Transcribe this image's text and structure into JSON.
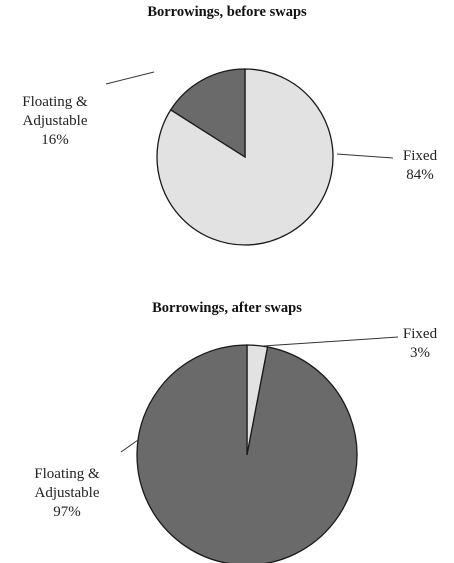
{
  "chart_data": [
    {
      "type": "pie",
      "title": "Borrowings, before swaps",
      "categories": [
        "Fixed",
        "Floating & Adjustable"
      ],
      "values": [
        84,
        16
      ],
      "value_labels": [
        "84%",
        "16%"
      ],
      "colors": [
        "#e2e2e2",
        "#6a6a6a"
      ]
    },
    {
      "type": "pie",
      "title": "Borrowings, after swaps",
      "categories": [
        "Fixed",
        "Floating & Adjustable"
      ],
      "values": [
        3,
        97
      ],
      "value_labels": [
        "3%",
        "97%"
      ],
      "colors": [
        "#e2e2e2",
        "#6a6a6a"
      ]
    }
  ]
}
